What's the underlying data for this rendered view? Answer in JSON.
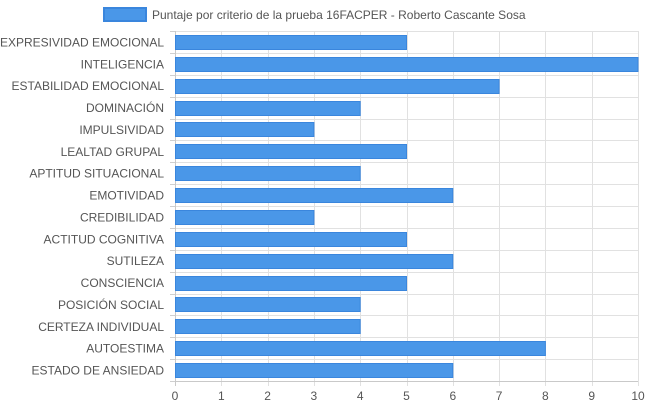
{
  "chart_data": {
    "type": "bar",
    "orientation": "horizontal",
    "legend": {
      "position": "top",
      "label": "Puntaje por criterio de la prueba 16FACPER - Roberto Cascante Sosa"
    },
    "series": [
      {
        "name": "Puntaje por criterio de la prueba 16FACPER - Roberto Cascante Sosa",
        "color": "#4a97e8",
        "border_color": "#3a86dd",
        "values": [
          5,
          10,
          7,
          4,
          3,
          5,
          4,
          6,
          3,
          5,
          6,
          5,
          4,
          4,
          8,
          6
        ]
      }
    ],
    "categories": [
      "EXPRESIVIDAD EMOCIONAL",
      "INTELIGENCIA",
      "ESTABILIDAD EMOCIONAL",
      "DOMINACIÓN",
      "IMPULSIVIDAD",
      "LEALTAD GRUPAL",
      "APTITUD SITUACIONAL",
      "EMOTIVIDAD",
      "CREDIBILIDAD",
      "ACTITUD COGNITIVA",
      "SUTILEZA",
      "CONSCIENCIA",
      "POSICIÓN SOCIAL",
      "CERTEZA INDIVIDUAL",
      "AUTOESTIMA",
      "ESTADO DE ANSIEDAD"
    ],
    "xlim": [
      0,
      10
    ],
    "xticks": [
      "0",
      "1",
      "2",
      "3",
      "4",
      "5",
      "6",
      "7",
      "8",
      "9",
      "10"
    ],
    "grid": true,
    "title": "",
    "xlabel": "",
    "ylabel": ""
  }
}
